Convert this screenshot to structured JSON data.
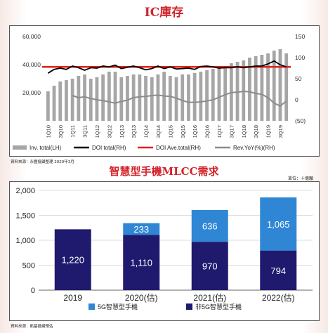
{
  "colors": {
    "title_red": "#d2232a",
    "inv_bar": "#a6a6a6",
    "doi_line": "#000000",
    "doi_ave_line": "#e2231a",
    "yoy_line": "#8c8c8c",
    "mlcc_5g": "#2f86d4",
    "mlcc_non5g": "#1f1a6e"
  },
  "top": {
    "title": "IC庫存",
    "source": "資料來源：永豐投顧整理 2020年3月"
  },
  "bottom": {
    "title": "智慧型手機MLCC需求",
    "unit": "單位：十億顆",
    "source": "資料來源：凱基投顧預估"
  },
  "chart_data": [
    {
      "type": "bar",
      "title": "IC庫存",
      "x_tick_labels": [
        "1Q10",
        "3Q10",
        "1Q11",
        "3Q11",
        "1Q12",
        "3Q12",
        "1Q13",
        "3Q13",
        "1Q14",
        "3Q14",
        "1Q15",
        "3Q15",
        "1Q16",
        "3Q16",
        "1Q17",
        "3Q17",
        "1Q18",
        "3Q18",
        "1Q19",
        "3Q19"
      ],
      "x_quarters": [
        "1Q10",
        "2Q10",
        "3Q10",
        "4Q10",
        "1Q11",
        "2Q11",
        "3Q11",
        "4Q11",
        "1Q12",
        "2Q12",
        "3Q12",
        "4Q12",
        "1Q13",
        "2Q13",
        "3Q13",
        "4Q13",
        "1Q14",
        "2Q14",
        "3Q14",
        "4Q14",
        "1Q15",
        "2Q15",
        "3Q15",
        "4Q15",
        "1Q16",
        "2Q16",
        "3Q16",
        "4Q16",
        "1Q17",
        "2Q17",
        "3Q17",
        "4Q17",
        "1Q18",
        "2Q18",
        "3Q18",
        "4Q18",
        "1Q19",
        "2Q19",
        "3Q19",
        "4Q19"
      ],
      "left_axis": {
        "ylim": [
          0,
          60000
        ],
        "ticks": [
          "20,000",
          "40,000",
          "60,000"
        ]
      },
      "right_axis": {
        "ylim": [
          -50,
          150
        ],
        "ticks": [
          "(50)",
          "0",
          "50",
          "100",
          "150"
        ]
      },
      "grid": false,
      "legend_position": "bottom",
      "series": [
        {
          "name": "Inv. total(LH)",
          "kind": "bar",
          "axis": "left",
          "values": [
            21000,
            25000,
            28000,
            29000,
            30000,
            32000,
            33000,
            30000,
            31000,
            33000,
            35000,
            35000,
            31000,
            32000,
            33000,
            33000,
            32000,
            31000,
            33000,
            35000,
            32000,
            31000,
            33000,
            33000,
            34000,
            35000,
            36000,
            37000,
            38000,
            39000,
            41000,
            42000,
            43000,
            45000,
            46000,
            47000,
            48000,
            50000,
            51000,
            48000
          ]
        },
        {
          "name": "DOI total(RH)",
          "kind": "line",
          "axis": "right",
          "values": [
            63,
            72,
            75,
            72,
            80,
            76,
            70,
            76,
            75,
            80,
            78,
            82,
            74,
            77,
            80,
            76,
            71,
            74,
            80,
            74,
            78,
            73,
            74,
            75,
            72,
            79,
            80,
            78,
            75,
            76,
            76,
            78,
            76,
            78,
            80,
            80,
            85,
            92,
            83,
            78
          ]
        },
        {
          "name": "DOI Ave.total(RH)",
          "kind": "line",
          "axis": "right",
          "values": [
            78,
            78,
            78,
            78,
            78,
            78,
            78,
            78,
            78,
            78,
            78,
            78,
            78,
            78,
            78,
            78,
            78,
            78,
            78,
            78,
            78,
            78,
            78,
            78,
            78,
            78,
            78,
            78,
            78,
            78,
            78,
            78,
            78,
            78,
            78,
            78,
            78,
            78,
            78,
            78
          ]
        },
        {
          "name": "Rev.YoY(%)(RH)",
          "kind": "line",
          "axis": "right",
          "values": [
            null,
            null,
            null,
            null,
            10,
            5,
            7,
            3,
            0,
            -2,
            -5,
            -8,
            -4,
            -1,
            5,
            7,
            8,
            10,
            11,
            9,
            8,
            4,
            -2,
            -6,
            -6,
            -5,
            -3,
            0,
            6,
            12,
            17,
            18,
            20,
            19,
            15,
            13,
            5,
            -8,
            -15,
            -3
          ]
        }
      ]
    },
    {
      "type": "bar",
      "title": "智慧型手機MLCC需求",
      "stacked": true,
      "categories": [
        "2019",
        "2020(估)",
        "2021(估)",
        "2022(估)"
      ],
      "ylim": [
        0,
        2000
      ],
      "y_ticks": [
        "0",
        "500",
        "1,000",
        "1,500",
        "2,000"
      ],
      "grid": true,
      "legend_position": "bottom",
      "series": [
        {
          "name": "非5G智慧型手機",
          "values": [
            1220,
            1110,
            970,
            794
          ],
          "labels": [
            "1,220",
            "1,110",
            "970",
            "794"
          ]
        },
        {
          "name": "5G智慧型手機",
          "values": [
            0,
            233,
            636,
            1065
          ],
          "labels": [
            "",
            "233",
            "636",
            "1,065"
          ]
        }
      ]
    }
  ]
}
